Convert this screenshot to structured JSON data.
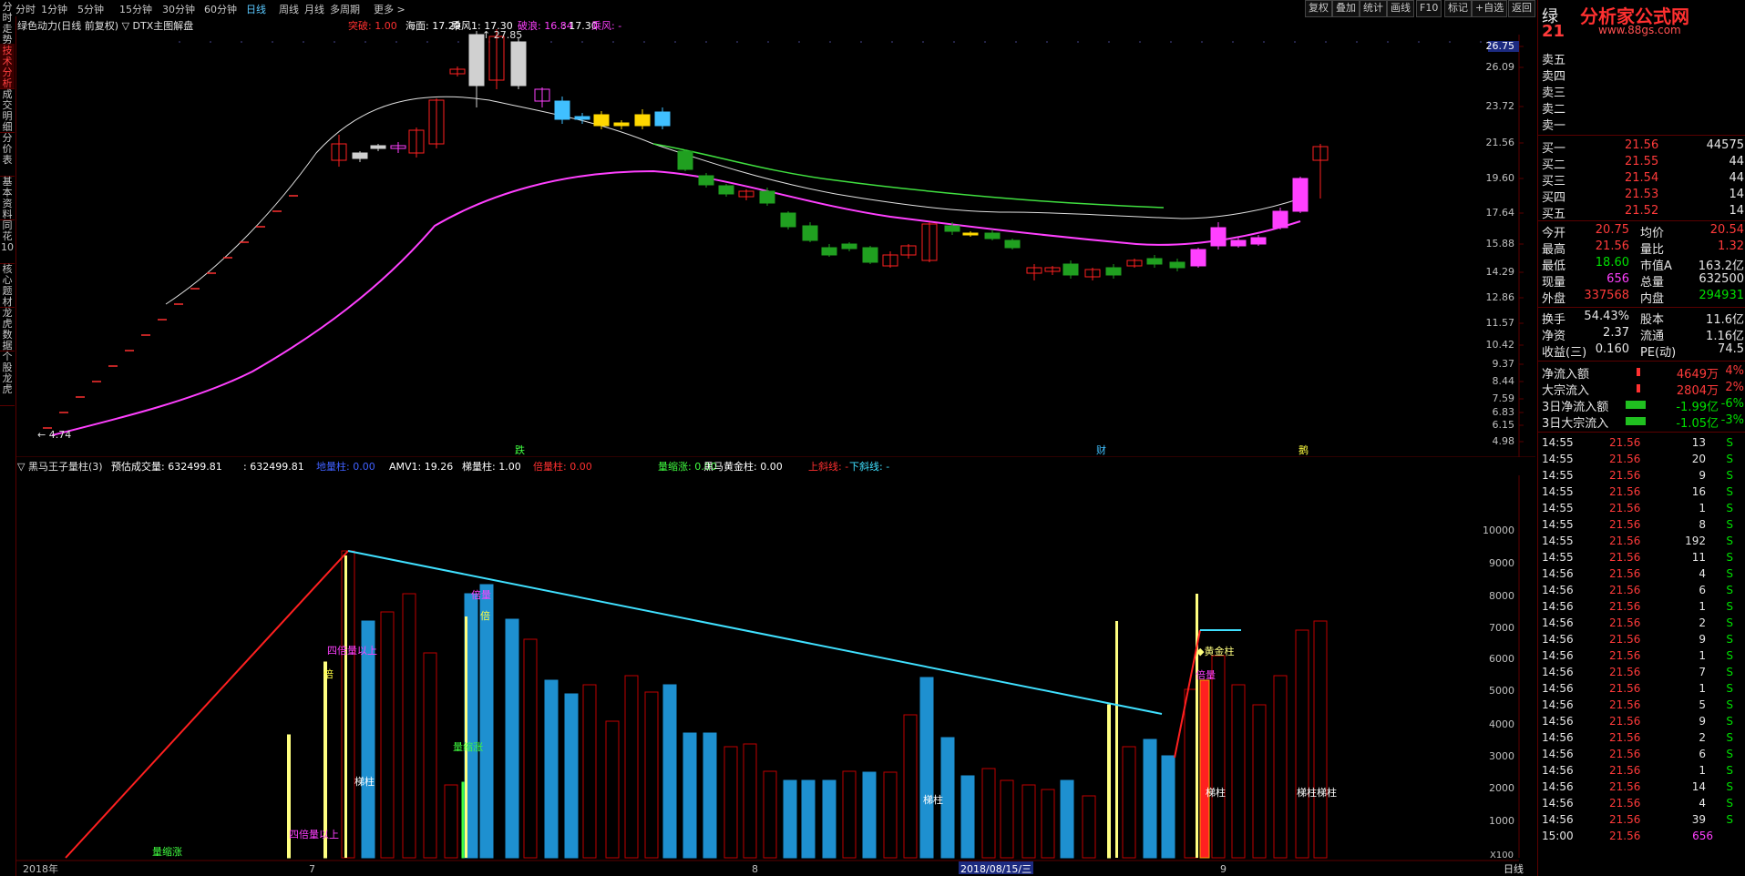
{
  "left_tabs": [
    "分时走势",
    "技术分析",
    "成交明细",
    "分价表",
    "基本资料",
    "同花10",
    "核心题材",
    "龙虎数据",
    "个股龙虎"
  ],
  "toolbar": {
    "periods": [
      "分时",
      "1分钟",
      "5分钟",
      "15分钟",
      "30分钟",
      "60分钟",
      "日线",
      "周线",
      "月线",
      "多周期",
      "更多"
    ],
    "selected": "日线",
    "right_buttons": [
      "复权",
      "叠加",
      "统计",
      "画线",
      "F10",
      "标记",
      "自选",
      "返回"
    ],
    "right_buttons_labels": [
      "复权",
      "叠加",
      "统计",
      "画线",
      "F10",
      "标记",
      "+自选",
      "返回"
    ]
  },
  "upper": {
    "title": "绿色动力(日线 前复权) ▽ DTX主图解盘",
    "legend": [
      {
        "text": "突破: 1.00",
        "color": "#ff3030"
      },
      {
        "text": "海面: 17.29",
        "color": "#ffffff"
      },
      {
        "text": "乘风1: 17.30",
        "color": "#ffffff"
      },
      {
        "text": "破浪: 16.84",
        "color": "#ff40ff"
      },
      {
        "text": ": 17.30",
        "color": "#ffffff"
      },
      {
        "text": "乘风: -",
        "color": "#ff40ff"
      }
    ],
    "price_axis": [
      "26.75",
      "26.09",
      "23.72",
      "21.56",
      "19.60",
      "17.64",
      "15.88",
      "14.29",
      "12.86",
      "11.57",
      "10.42",
      "9.37",
      "8.44",
      "7.59",
      "6.83",
      "6.15",
      "4.98"
    ],
    "high_label": "27.85",
    "low_label": "4.74",
    "signals": [
      {
        "text": "跌",
        "color": "#40ff40"
      },
      {
        "text": "财",
        "color": "#40c0ff"
      },
      {
        "text": "鹅",
        "color": "#ffff40"
      }
    ]
  },
  "lower": {
    "title": "▽ 黑马王子量柱(3)",
    "legend": [
      {
        "text": "预估成交量: 632499.81",
        "color": "#ffffff"
      },
      {
        "text": ": 632499.81",
        "color": "#ffffff"
      },
      {
        "text": "地量柱: 0.00",
        "color": "#4060ff"
      },
      {
        "text": "AMV1: 19.26",
        "color": "#ffffff"
      },
      {
        "text": "梯量柱: 1.00",
        "color": "#ffffff"
      },
      {
        "text": "倍量柱: 0.00",
        "color": "#ff3030"
      },
      {
        "text": "量缩涨: 0.00",
        "color": "#40ff40"
      },
      {
        "text": "黑马黄金柱: 0.00",
        "color": "#ffffff"
      },
      {
        "text": "上斜线: -",
        "color": "#ff3030"
      },
      {
        "text": "下斜线: -",
        "color": "#40e0ff"
      }
    ],
    "vol_axis": [
      "10000",
      "9000",
      "8000",
      "7000",
      "6000",
      "5000",
      "4000",
      "3000",
      "2000",
      "1000"
    ],
    "annotations": [
      {
        "text": "四倍量以上",
        "color": "#ff40ff"
      },
      {
        "text": "倍",
        "color": "#ffff40"
      },
      {
        "text": "梯柱",
        "color": "#ffffff"
      },
      {
        "text": "量缩涨",
        "color": "#40ff40"
      },
      {
        "text": "倍量",
        "color": "#ff40ff"
      },
      {
        "text": "梯柱",
        "color": "#ffffff"
      },
      {
        "text": "倍",
        "color": "#ffff40"
      },
      {
        "text": "◆黄金柱",
        "color": "#ffff80"
      },
      {
        "text": "倍量",
        "color": "#ff40ff"
      },
      {
        "text": "梯柱",
        "color": "#ffffff"
      },
      {
        "text": "梯柱梯柱",
        "color": "#ffffff"
      },
      {
        "text": "四倍量以上",
        "color": "#ff40ff"
      },
      {
        "text": "量缩涨",
        "color": "#40ff40"
      }
    ],
    "date_axis": [
      {
        "text": "2018年"
      },
      {
        "text": "7"
      },
      {
        "text": "8"
      },
      {
        "text": "2018/08/15/三"
      },
      {
        "text": "9"
      }
    ],
    "x100": "X100",
    "bottom_right_label": "日线"
  },
  "right_panel": {
    "header": "绿",
    "header_price": "21",
    "sell_orders": [
      {
        "label": "卖五",
        "price": "",
        "vol": ""
      },
      {
        "label": "卖四",
        "price": "",
        "vol": ""
      },
      {
        "label": "卖三",
        "price": "",
        "vol": ""
      },
      {
        "label": "卖二",
        "price": "",
        "vol": ""
      },
      {
        "label": "卖一",
        "price": "",
        "vol": ""
      }
    ],
    "buy_orders": [
      {
        "label": "买一",
        "price": "21.56",
        "vol": "44575"
      },
      {
        "label": "买二",
        "price": "21.55",
        "vol": "44"
      },
      {
        "label": "买三",
        "price": "21.54",
        "vol": "44"
      },
      {
        "label": "买四",
        "price": "21.53",
        "vol": "14"
      },
      {
        "label": "买五",
        "price": "21.52",
        "vol": "14"
      }
    ],
    "stats": [
      {
        "l1": "今开",
        "v1": "20.75",
        "c1": "red",
        "l2": "均价",
        "v2": "20.54",
        "c2": "red"
      },
      {
        "l1": "最高",
        "v1": "21.56",
        "c1": "red",
        "l2": "量比",
        "v2": "1.32",
        "c2": "red"
      },
      {
        "l1": "最低",
        "v1": "18.60",
        "c1": "grn",
        "l2": "市值A",
        "v2": "163.2亿",
        "c2": "wht"
      },
      {
        "l1": "现量",
        "v1": "656",
        "c1": "mag",
        "l2": "总量",
        "v2": "632500",
        "c2": "wht"
      },
      {
        "l1": "外盘",
        "v1": "337568",
        "c1": "red",
        "l2": "内盘",
        "v2": "294931",
        "c2": "grn"
      }
    ],
    "stats2": [
      {
        "l1": "换手",
        "v1": "54.43%",
        "l2": "股本",
        "v2": "11.6亿"
      },
      {
        "l1": "净资",
        "v1": "2.37",
        "l2": "流通",
        "v2": "1.16亿"
      },
      {
        "l1": "收益(三)",
        "v1": "0.160",
        "l2": "PE(动)",
        "v2": "74.5"
      }
    ],
    "flows": [
      {
        "label": "净流入额",
        "val": "4649万",
        "pct": "4%",
        "color": "red"
      },
      {
        "label": "大宗流入",
        "val": "2804万",
        "pct": "2%",
        "color": "red"
      },
      {
        "label": "3日净流入额",
        "val": "-1.99亿",
        "pct": "-6%",
        "color": "grn"
      },
      {
        "label": "3日大宗流入",
        "val": "-1.05亿",
        "pct": "-3%",
        "color": "grn"
      }
    ],
    "ticks": [
      {
        "t": "14:55",
        "p": "21.56",
        "v": "13",
        "s": "S"
      },
      {
        "t": "14:55",
        "p": "21.56",
        "v": "20",
        "s": "S"
      },
      {
        "t": "14:55",
        "p": "21.56",
        "v": "9",
        "s": "S"
      },
      {
        "t": "14:55",
        "p": "21.56",
        "v": "16",
        "s": "S"
      },
      {
        "t": "14:55",
        "p": "21.56",
        "v": "1",
        "s": "S"
      },
      {
        "t": "14:55",
        "p": "21.56",
        "v": "8",
        "s": "S"
      },
      {
        "t": "14:55",
        "p": "21.56",
        "v": "192",
        "s": "S"
      },
      {
        "t": "14:55",
        "p": "21.56",
        "v": "11",
        "s": "S"
      },
      {
        "t": "14:56",
        "p": "21.56",
        "v": "4",
        "s": "S"
      },
      {
        "t": "14:56",
        "p": "21.56",
        "v": "6",
        "s": "S"
      },
      {
        "t": "14:56",
        "p": "21.56",
        "v": "1",
        "s": "S"
      },
      {
        "t": "14:56",
        "p": "21.56",
        "v": "2",
        "s": "S"
      },
      {
        "t": "14:56",
        "p": "21.56",
        "v": "9",
        "s": "S"
      },
      {
        "t": "14:56",
        "p": "21.56",
        "v": "1",
        "s": "S"
      },
      {
        "t": "14:56",
        "p": "21.56",
        "v": "7",
        "s": "S"
      },
      {
        "t": "14:56",
        "p": "21.56",
        "v": "1",
        "s": "S"
      },
      {
        "t": "14:56",
        "p": "21.56",
        "v": "5",
        "s": "S"
      },
      {
        "t": "14:56",
        "p": "21.56",
        "v": "9",
        "s": "S"
      },
      {
        "t": "14:56",
        "p": "21.56",
        "v": "2",
        "s": "S"
      },
      {
        "t": "14:56",
        "p": "21.56",
        "v": "6",
        "s": "S"
      },
      {
        "t": "14:56",
        "p": "21.56",
        "v": "1",
        "s": "S"
      },
      {
        "t": "14:56",
        "p": "21.56",
        "v": "14",
        "s": "S"
      },
      {
        "t": "14:56",
        "p": "21.56",
        "v": "4",
        "s": "S"
      },
      {
        "t": "14:56",
        "p": "21.56",
        "v": "39",
        "s": "S"
      },
      {
        "t": "15:00",
        "p": "21.56",
        "v": "656",
        "s": ""
      }
    ]
  },
  "watermark": {
    "text": "分析家公式网",
    "url": "www.88gs.com"
  }
}
